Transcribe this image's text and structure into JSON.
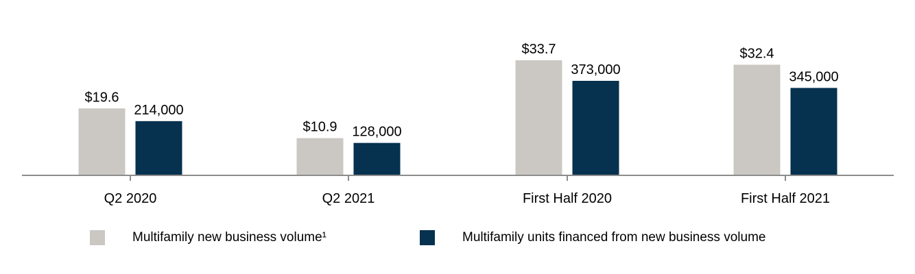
{
  "chart_data": {
    "type": "bar",
    "categories": [
      "Q2 2020",
      "Q2 2021",
      "First Half 2020",
      "First Half 2021"
    ],
    "series": [
      {
        "name": "Multifamily new business volume¹",
        "values": [
          19.6,
          10.9,
          33.7,
          32.4
        ],
        "labels": [
          "$19.6",
          "$10.9",
          "$33.7",
          "$32.4"
        ],
        "color": "#cbc8c3"
      },
      {
        "name": "Multifamily units financed from new business volume",
        "values": [
          214000,
          128000,
          373000,
          345000
        ],
        "labels": [
          "214,000",
          "128,000",
          "373,000",
          "345,000"
        ],
        "color": "#06314f"
      }
    ],
    "axis_color": "#8c8c8c",
    "yaxis": "hidden",
    "grid": false,
    "legend_position": "bottom"
  }
}
